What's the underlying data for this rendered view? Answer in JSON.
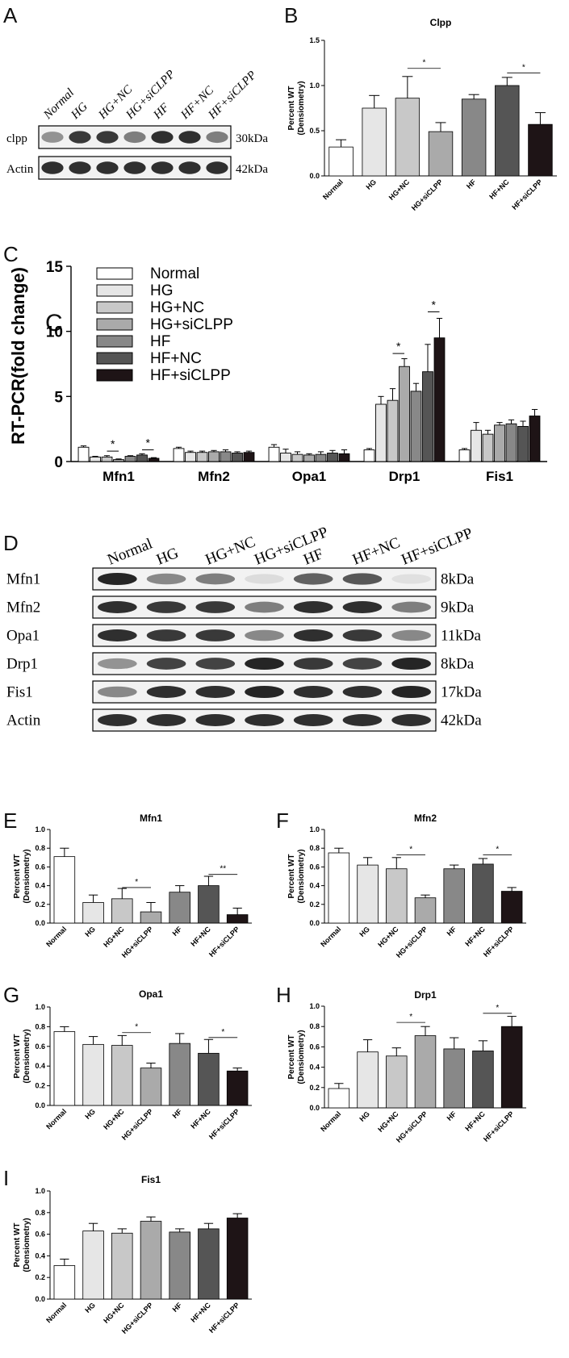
{
  "panels": {
    "a": "A",
    "b": "B",
    "c1": "C",
    "c2": "C",
    "d": "D",
    "e": "E",
    "f": "F",
    "g": "G",
    "h": "H",
    "i": "I"
  },
  "colors": [
    "#ffffff",
    "#e6e6e6",
    "#c8c8c8",
    "#aaaaaa",
    "#888888",
    "#555555",
    "#1e1416"
  ],
  "blot_a": {
    "lanes": [
      "Normal",
      "HG",
      "HG+NC",
      "HG+siCLPP",
      "HF",
      "HF+NC",
      "HF+siCLPP"
    ],
    "rows": [
      {
        "label": "clpp",
        "size": "30kDa",
        "intensity": [
          0.45,
          0.9,
          0.9,
          0.55,
          0.95,
          0.95,
          0.55
        ]
      },
      {
        "label": "Actin",
        "size": "42kDa",
        "intensity": [
          0.95,
          0.95,
          0.95,
          0.95,
          0.95,
          0.95,
          0.95
        ]
      }
    ]
  },
  "blot_d": {
    "lanes": [
      "Normal",
      "HG",
      "HG+NC",
      "HG+siCLPP",
      "HF",
      "HF+NC",
      "HF+siCLPP"
    ],
    "rows": [
      {
        "label": "Mfn1",
        "size": "8kDa",
        "intensity": [
          1.0,
          0.5,
          0.55,
          0.08,
          0.7,
          0.75,
          0.06
        ]
      },
      {
        "label": "Mfn2",
        "size": "9kDa",
        "intensity": [
          0.95,
          0.9,
          0.9,
          0.55,
          0.95,
          0.95,
          0.55
        ]
      },
      {
        "label": "Opa1",
        "size": "11kDa",
        "intensity": [
          0.95,
          0.9,
          0.9,
          0.5,
          0.95,
          0.9,
          0.5
        ]
      },
      {
        "label": "Drp1",
        "size": "8kDa",
        "intensity": [
          0.45,
          0.85,
          0.85,
          1.0,
          0.9,
          0.85,
          1.0
        ]
      },
      {
        "label": "Fis1",
        "size": "17kDa",
        "intensity": [
          0.5,
          0.95,
          0.95,
          1.0,
          0.95,
          0.95,
          1.0
        ]
      },
      {
        "label": "Actin",
        "size": "42kDa",
        "intensity": [
          0.95,
          0.95,
          0.95,
          0.95,
          0.95,
          0.95,
          0.95
        ]
      }
    ]
  },
  "chart_data": [
    {
      "id": "B",
      "type": "bar",
      "title": "Clpp",
      "ylabel": "Percent WT",
      "ylabel2": "(Densiometry)",
      "categories": [
        "Normal",
        "HG",
        "HG+NC",
        "HG+siCLPP",
        "HF",
        "HF+NC",
        "HF+siCLPP"
      ],
      "values": [
        0.32,
        0.75,
        0.86,
        0.49,
        0.85,
        1.0,
        0.57
      ],
      "errors": [
        0.08,
        0.14,
        0.24,
        0.1,
        0.05,
        0.09,
        0.13
      ],
      "ylim": [
        0,
        1.5
      ],
      "yticks": [
        "0.0",
        "0.5",
        "1.0",
        "1.5"
      ],
      "significance": [
        {
          "from": 2,
          "to": 3,
          "y": 1.19,
          "label": "*"
        },
        {
          "from": 5,
          "to": 6,
          "y": 1.14,
          "label": "*"
        }
      ]
    },
    {
      "id": "C",
      "type": "bar",
      "ylabel": "RT-PCR(fold change)",
      "categories": [
        "Mfn1",
        "Mfn2",
        "Opa1",
        "Drp1",
        "Fis1"
      ],
      "series": [
        {
          "name": "Normal",
          "values": [
            1.1,
            1.0,
            1.1,
            0.9,
            0.9
          ],
          "errors": [
            0.1,
            0.1,
            0.2,
            0.1,
            0.1
          ]
        },
        {
          "name": "HG",
          "values": [
            0.35,
            0.7,
            0.65,
            4.4,
            2.4
          ],
          "errors": [
            0.05,
            0.1,
            0.3,
            0.6,
            0.6
          ]
        },
        {
          "name": "HG+NC",
          "values": [
            0.35,
            0.7,
            0.55,
            4.7,
            2.1
          ],
          "errors": [
            0.1,
            0.1,
            0.2,
            0.9,
            0.3
          ]
        },
        {
          "name": "HG+siCLPP",
          "values": [
            0.15,
            0.75,
            0.5,
            7.3,
            2.8
          ],
          "errors": [
            0.05,
            0.1,
            0.1,
            0.6,
            0.2
          ]
        },
        {
          "name": "HF",
          "values": [
            0.4,
            0.75,
            0.55,
            5.4,
            2.9
          ],
          "errors": [
            0.05,
            0.15,
            0.2,
            0.6,
            0.3
          ]
        },
        {
          "name": "HF+NC",
          "values": [
            0.5,
            0.65,
            0.65,
            6.9,
            2.7
          ],
          "errors": [
            0.1,
            0.1,
            0.2,
            2.1,
            0.4
          ]
        },
        {
          "name": "HF+siCLPP",
          "values": [
            0.25,
            0.7,
            0.6,
            9.5,
            3.5
          ],
          "errors": [
            0.05,
            0.1,
            0.3,
            1.5,
            0.5
          ]
        }
      ],
      "ylim": [
        0,
        15
      ],
      "yticks": [
        "0",
        "5",
        "10",
        "15"
      ],
      "significance": [
        {
          "cat": 0,
          "from": 2,
          "to": 3,
          "y": 0.8,
          "label": "*"
        },
        {
          "cat": 0,
          "from": 5,
          "to": 6,
          "y": 0.9,
          "label": "*"
        },
        {
          "cat": 3,
          "from": 2,
          "to": 3,
          "y": 8.3,
          "label": "*"
        },
        {
          "cat": 3,
          "from": 5,
          "to": 6,
          "y": 11.5,
          "label": "*"
        }
      ]
    },
    {
      "id": "E",
      "type": "bar",
      "title": "Mfn1",
      "ylabel": "Percent WT",
      "ylabel2": "(Densiometry)",
      "categories": [
        "Normal",
        "HG",
        "HG+NC",
        "HG+siCLPP",
        "HF",
        "HF+NC",
        "HF+siCLPP"
      ],
      "values": [
        0.71,
        0.22,
        0.26,
        0.12,
        0.33,
        0.4,
        0.09
      ],
      "errors": [
        0.09,
        0.08,
        0.11,
        0.1,
        0.07,
        0.1,
        0.07
      ],
      "ylim": [
        0,
        1.0
      ],
      "yticks": [
        "0.0",
        "0.2",
        "0.4",
        "0.6",
        "0.8",
        "1.0"
      ],
      "significance": [
        {
          "from": 2,
          "to": 3,
          "y": 0.38,
          "label": "*"
        },
        {
          "from": 5,
          "to": 6,
          "y": 0.52,
          "label": "**"
        }
      ]
    },
    {
      "id": "F",
      "type": "bar",
      "title": "Mfn2",
      "ylabel": "Percent WT",
      "ylabel2": "(Densiometry)",
      "categories": [
        "Normal",
        "HG",
        "HG+NC",
        "HG+siCLPP",
        "HF",
        "HF+NC",
        "HF+siCLPP"
      ],
      "values": [
        0.75,
        0.62,
        0.58,
        0.27,
        0.58,
        0.63,
        0.34
      ],
      "errors": [
        0.05,
        0.08,
        0.12,
        0.03,
        0.04,
        0.06,
        0.04
      ],
      "ylim": [
        0,
        1.0
      ],
      "yticks": [
        "0.0",
        "0.2",
        "0.4",
        "0.6",
        "0.8",
        "1.0"
      ],
      "significance": [
        {
          "from": 2,
          "to": 3,
          "y": 0.73,
          "label": "*"
        },
        {
          "from": 5,
          "to": 6,
          "y": 0.73,
          "label": "*"
        }
      ]
    },
    {
      "id": "G",
      "type": "bar",
      "title": "Opa1",
      "ylabel": "Percent WT",
      "ylabel2": "(Densiometry)",
      "categories": [
        "Normal",
        "HG",
        "HG+NC",
        "HG+siCLPP",
        "HF",
        "HF+NC",
        "HF+siCLPP"
      ],
      "values": [
        0.75,
        0.62,
        0.61,
        0.38,
        0.63,
        0.53,
        0.35
      ],
      "errors": [
        0.05,
        0.08,
        0.1,
        0.05,
        0.1,
        0.14,
        0.03
      ],
      "ylim": [
        0,
        1.0
      ],
      "yticks": [
        "0.0",
        "0.2",
        "0.4",
        "0.6",
        "0.8",
        "1.0"
      ],
      "significance": [
        {
          "from": 2,
          "to": 3,
          "y": 0.74,
          "label": "*"
        },
        {
          "from": 5,
          "to": 6,
          "y": 0.69,
          "label": "*"
        }
      ]
    },
    {
      "id": "H",
      "type": "bar",
      "title": "Drp1",
      "ylabel": "Percent WT",
      "ylabel2": "(Densiometry)",
      "categories": [
        "Normal",
        "HG",
        "HG+NC",
        "HG+siCLPP",
        "HF",
        "HF+NC",
        "HF+siCLPP"
      ],
      "values": [
        0.19,
        0.55,
        0.51,
        0.71,
        0.58,
        0.56,
        0.8
      ],
      "errors": [
        0.05,
        0.12,
        0.08,
        0.09,
        0.11,
        0.1,
        0.1
      ],
      "ylim": [
        0,
        1.0
      ],
      "yticks": [
        "0.0",
        "0.2",
        "0.4",
        "0.6",
        "0.8",
        "1.0"
      ],
      "significance": [
        {
          "from": 2,
          "to": 3,
          "y": 0.84,
          "label": "*"
        },
        {
          "from": 5,
          "to": 6,
          "y": 0.93,
          "label": "*"
        }
      ]
    },
    {
      "id": "I",
      "type": "bar",
      "title": "Fis1",
      "ylabel": "Percent WT",
      "ylabel2": "(Densiometry)",
      "categories": [
        "Normal",
        "HG",
        "HG+NC",
        "HG+siCLPP",
        "HF",
        "HF+NC",
        "HF+siCLPP"
      ],
      "values": [
        0.31,
        0.63,
        0.61,
        0.72,
        0.62,
        0.65,
        0.75
      ],
      "errors": [
        0.06,
        0.07,
        0.04,
        0.04,
        0.03,
        0.05,
        0.04
      ],
      "ylim": [
        0,
        1.0
      ],
      "yticks": [
        "0.0",
        "0.2",
        "0.4",
        "0.6",
        "0.8",
        "1.0"
      ],
      "significance": []
    }
  ]
}
